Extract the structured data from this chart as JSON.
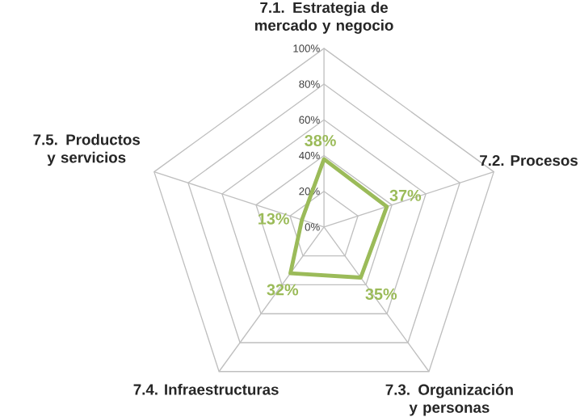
{
  "chart_data": {
    "type": "radar",
    "categories": [
      "7.1. Estrategia de mercado y negocio",
      "7.2. Procesos",
      "7.3. Organización y personas",
      "7.4. Infraestructuras",
      "7.5. Productos y servicios"
    ],
    "series": [
      {
        "color": "#9bbb59",
        "values": [
          38,
          37,
          35,
          32,
          13
        ],
        "value_labels": [
          "38%",
          "37%",
          "35%",
          "32%",
          "13%"
        ]
      }
    ],
    "ylim": [
      0,
      100
    ],
    "yticks": [
      {
        "value": 0,
        "label": "0%"
      },
      {
        "value": 20,
        "label": "20%"
      },
      {
        "value": 40,
        "label": "40%"
      },
      {
        "value": 60,
        "label": "60%"
      },
      {
        "value": 80,
        "label": "80%"
      },
      {
        "value": 100,
        "label": "100%"
      }
    ],
    "grid": true
  }
}
